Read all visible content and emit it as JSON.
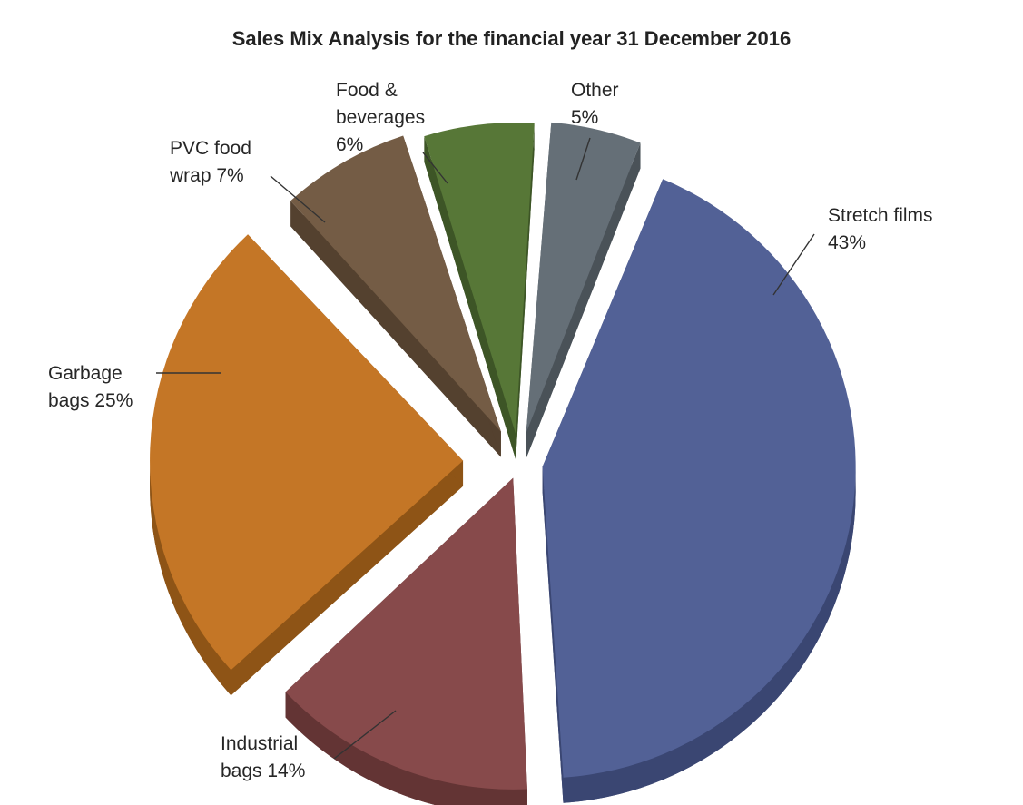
{
  "chart_data": {
    "type": "pie",
    "title": "Sales Mix Analysis for the financial year 31 December 2016",
    "unit": "%",
    "legend": "none",
    "slices": [
      {
        "name": "Stretch films",
        "value": 43,
        "color": "#526196",
        "side_color": "#3a4672",
        "label_lines": [
          "Stretch films",
          "43%"
        ]
      },
      {
        "name": "Industrial bags",
        "value": 14,
        "color": "#874a4b",
        "side_color": "#633434",
        "label_lines": [
          "Industrial",
          "bags 14%"
        ]
      },
      {
        "name": "Garbage bags",
        "value": 25,
        "color": "#c47626",
        "side_color": "#8e5416",
        "label_lines": [
          "Garbage",
          "bags 25%"
        ]
      },
      {
        "name": "PVC food wrap",
        "value": 7,
        "color": "#745c45",
        "side_color": "#54412f",
        "label_lines": [
          "PVC food",
          "wrap 7%"
        ]
      },
      {
        "name": "Food & beverages",
        "value": 6,
        "color": "#577737",
        "side_color": "#3d5526",
        "label_lines": [
          "Food &",
          "beverages",
          "6%"
        ]
      },
      {
        "name": "Other",
        "value": 5,
        "color": "#656f77",
        "side_color": "#4a5258",
        "label_lines": [
          "Other",
          "5%"
        ]
      }
    ]
  }
}
